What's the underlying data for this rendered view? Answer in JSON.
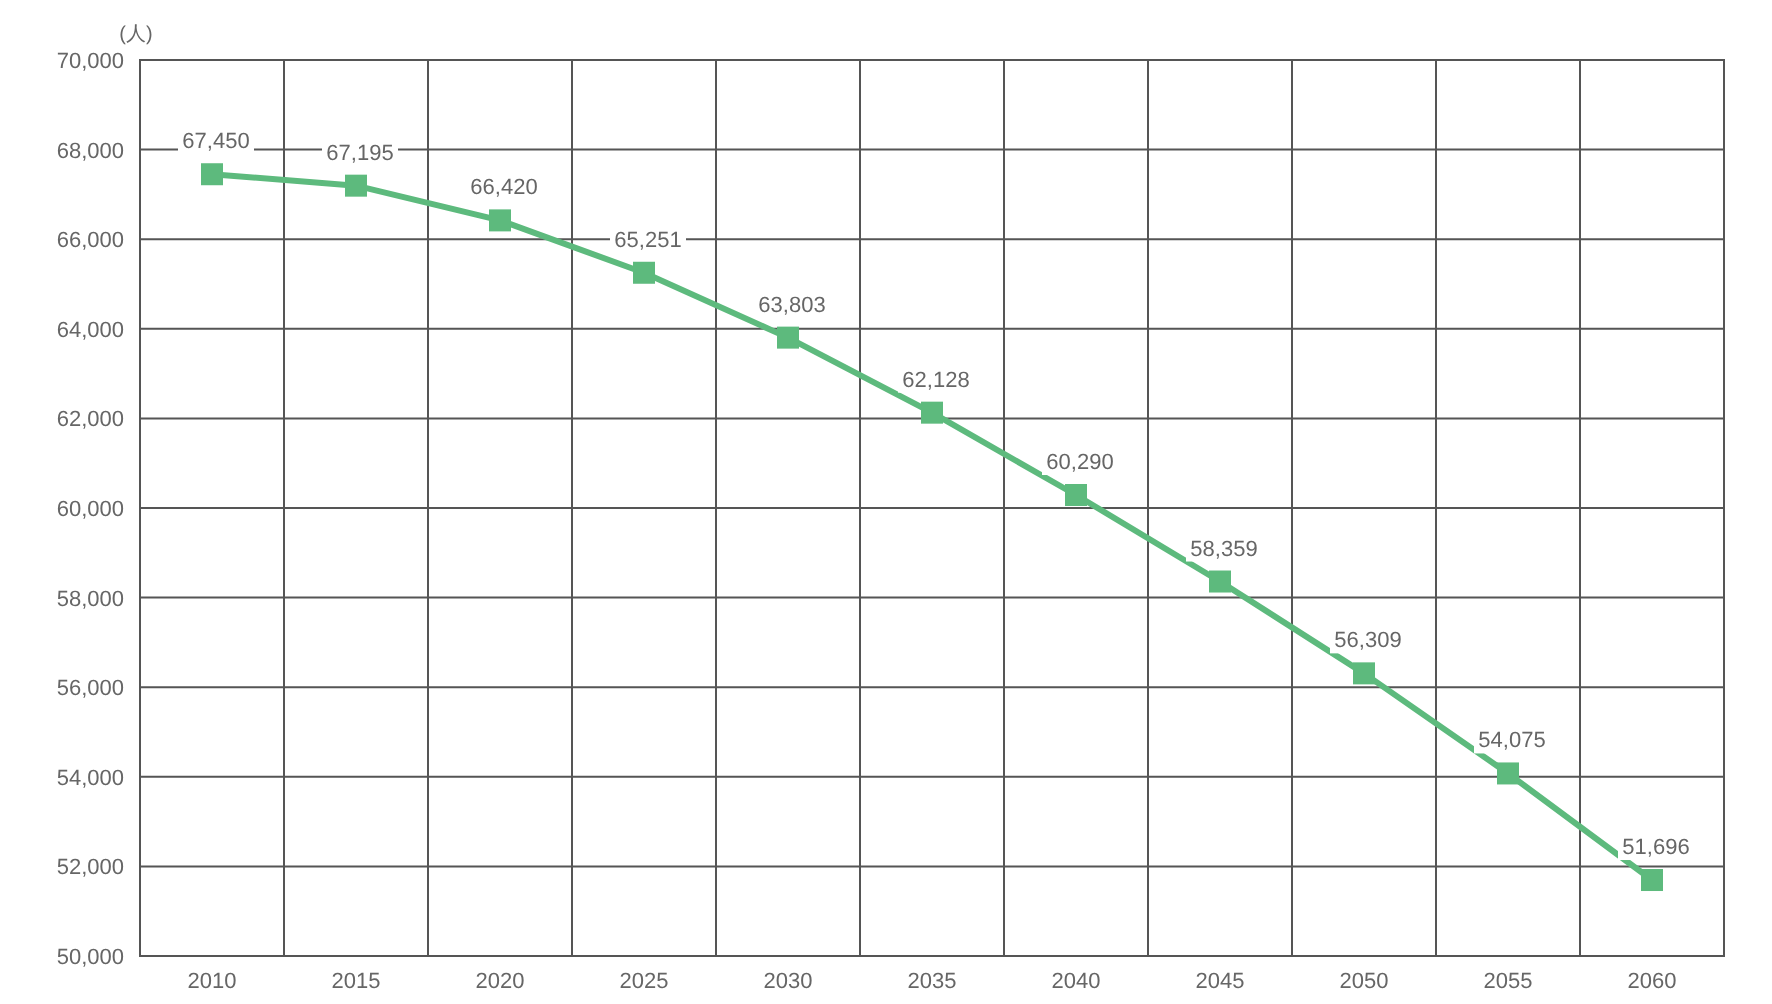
{
  "chart_data": {
    "type": "line",
    "ylabel": "(人)",
    "categories": [
      "2010",
      "2015",
      "2020",
      "2025",
      "2030",
      "2035",
      "2040",
      "2045",
      "2050",
      "2055",
      "2060"
    ],
    "series": [
      {
        "color": "#5dba7d",
        "values": [
          67450,
          67195,
          66420,
          65251,
          63803,
          62128,
          60290,
          58359,
          56309,
          54075,
          51696
        ],
        "value_labels": [
          "67,450",
          "67,195",
          "66,420",
          "65,251",
          "63,803",
          "62,128",
          "60,290",
          "58,359",
          "56,309",
          "54,075",
          "51,696"
        ]
      }
    ],
    "ylim": [
      50000,
      70000
    ],
    "yticks": [
      {
        "value": 50000,
        "label": "50,000"
      },
      {
        "value": 52000,
        "label": "52,000"
      },
      {
        "value": 54000,
        "label": "54,000"
      },
      {
        "value": 56000,
        "label": "56,000"
      },
      {
        "value": 58000,
        "label": "58,000"
      },
      {
        "value": 60000,
        "label": "60,000"
      },
      {
        "value": 62000,
        "label": "62,000"
      },
      {
        "value": 64000,
        "label": "64,000"
      },
      {
        "value": 66000,
        "label": "66,000"
      },
      {
        "value": 68000,
        "label": "68,000"
      },
      {
        "value": 70000,
        "label": "70,000"
      }
    ],
    "grid": true,
    "marker": "square"
  }
}
